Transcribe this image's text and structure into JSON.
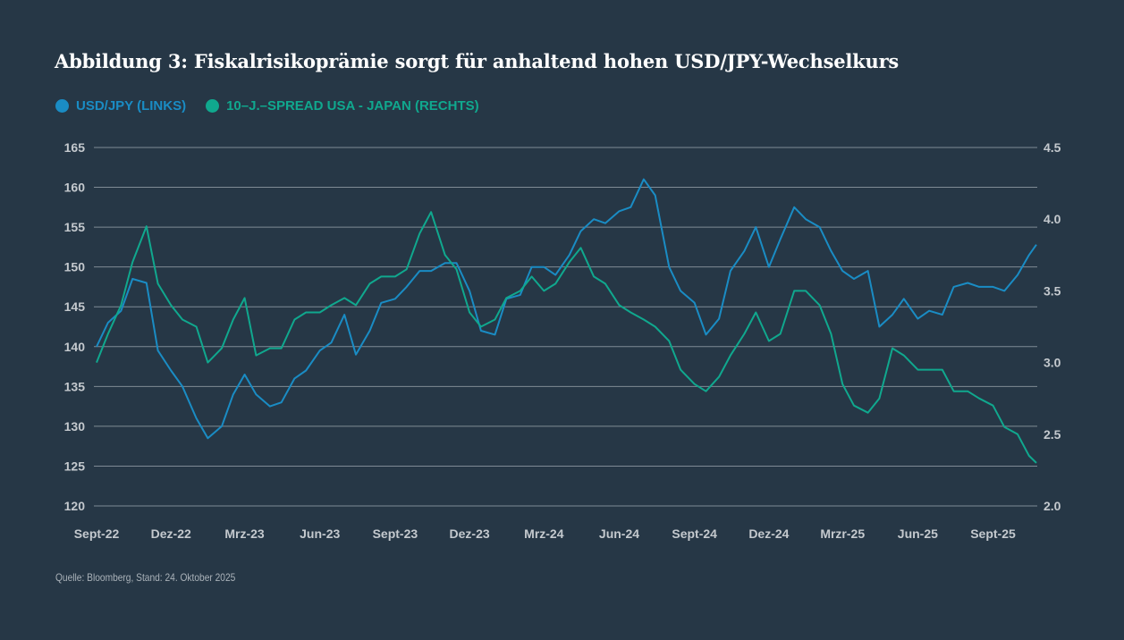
{
  "chart_data": {
    "type": "line",
    "title": "Abbildung 3: Fiskalrisikoprämie sorgt für anhaltend hohen USD/JPY-Wechselkurs",
    "source": "Quelle: Bloomberg, Stand: 24. Oktober 2025",
    "x_ticks": [
      "Sept-22",
      "Dez-22",
      "Mrz-23",
      "Jun-23",
      "Sept-23",
      "Dez-23",
      "Mrz-24",
      "Jun-24",
      "Sept-24",
      "Dez-24",
      "Mrzr-25",
      "Jun-25",
      "Sept-25"
    ],
    "x_tick_dates": [
      "2022-09-01",
      "2022-12-01",
      "2023-03-01",
      "2023-06-01",
      "2023-09-01",
      "2023-12-01",
      "2024-03-01",
      "2024-06-01",
      "2024-09-01",
      "2024-12-01",
      "2025-03-01",
      "2025-06-01",
      "2025-09-01"
    ],
    "xlim": [
      "2022-09-01",
      "2025-10-24"
    ],
    "y_left": {
      "ticks": [
        "120",
        "125",
        "130",
        "135",
        "140",
        "145",
        "150",
        "155",
        "160",
        "165"
      ],
      "lim": [
        120,
        165
      ]
    },
    "y_right": {
      "ticks": [
        "2.0",
        "2.5",
        "3.0",
        "3.5",
        "4.0",
        "4.5"
      ],
      "lim": [
        2.0,
        4.5
      ]
    },
    "grid": true,
    "legend_placement": "top-left",
    "x": [
      "2022-09-01",
      "2022-09-15",
      "2022-10-01",
      "2022-10-15",
      "2022-11-01",
      "2022-11-15",
      "2022-12-01",
      "2022-12-15",
      "2023-01-01",
      "2023-01-15",
      "2023-02-01",
      "2023-02-15",
      "2023-03-01",
      "2023-03-15",
      "2023-04-01",
      "2023-04-15",
      "2023-05-01",
      "2023-05-15",
      "2023-06-01",
      "2023-06-15",
      "2023-07-01",
      "2023-07-15",
      "2023-08-01",
      "2023-08-15",
      "2023-09-01",
      "2023-09-15",
      "2023-10-01",
      "2023-10-15",
      "2023-11-01",
      "2023-11-15",
      "2023-12-01",
      "2023-12-15",
      "2024-01-01",
      "2024-01-15",
      "2024-02-01",
      "2024-02-15",
      "2024-03-01",
      "2024-03-15",
      "2024-04-01",
      "2024-04-15",
      "2024-05-01",
      "2024-05-15",
      "2024-06-01",
      "2024-06-15",
      "2024-07-01",
      "2024-07-15",
      "2024-08-01",
      "2024-08-15",
      "2024-09-01",
      "2024-09-15",
      "2024-10-01",
      "2024-10-15",
      "2024-11-01",
      "2024-11-15",
      "2024-12-01",
      "2024-12-15",
      "2025-01-01",
      "2025-01-15",
      "2025-02-01",
      "2025-02-15",
      "2025-03-01",
      "2025-03-15",
      "2025-04-01",
      "2025-04-15",
      "2025-05-01",
      "2025-05-15",
      "2025-06-01",
      "2025-06-15",
      "2025-07-01",
      "2025-07-15",
      "2025-08-01",
      "2025-08-15",
      "2025-09-01",
      "2025-09-15",
      "2025-10-01",
      "2025-10-15",
      "2025-10-24"
    ],
    "series": [
      {
        "name": "USD/JPY (LINKS)",
        "axis": "left",
        "color": "#1a8cc4",
        "values": [
          140,
          143,
          144.5,
          148.5,
          148,
          139.5,
          137,
          135,
          131,
          128.5,
          130,
          134,
          136.5,
          134,
          132.5,
          133,
          136,
          137,
          139.5,
          140.5,
          144,
          139,
          142,
          145.5,
          146,
          147.5,
          149.5,
          149.5,
          150.5,
          150.5,
          147,
          142,
          141.5,
          146,
          146.5,
          150,
          150,
          149,
          151.5,
          154.5,
          156,
          155.5,
          157,
          157.5,
          161,
          159,
          150,
          147,
          145.5,
          141.5,
          143.5,
          149.5,
          152,
          155,
          150,
          153.5,
          157.5,
          156,
          155,
          152,
          149.5,
          148.5,
          149.5,
          142.5,
          144,
          146,
          143.5,
          144.5,
          144,
          147.5,
          148,
          147.5,
          147.5,
          147,
          149,
          151.5,
          152.8
        ]
      },
      {
        "name": "10–J.–SPREAD USA - JAPAN (RECHTS)",
        "axis": "right",
        "color": "#10a88e",
        "values": [
          3.0,
          3.2,
          3.4,
          3.7,
          3.95,
          3.55,
          3.4,
          3.3,
          3.25,
          3.0,
          3.1,
          3.3,
          3.45,
          3.05,
          3.1,
          3.1,
          3.3,
          3.35,
          3.35,
          3.4,
          3.45,
          3.4,
          3.55,
          3.6,
          3.6,
          3.65,
          3.9,
          4.05,
          3.75,
          3.65,
          3.35,
          3.25,
          3.3,
          3.45,
          3.5,
          3.6,
          3.5,
          3.55,
          3.7,
          3.8,
          3.6,
          3.55,
          3.4,
          3.35,
          3.3,
          3.25,
          3.15,
          2.95,
          2.85,
          2.8,
          2.9,
          3.05,
          3.2,
          3.35,
          3.15,
          3.2,
          3.5,
          3.5,
          3.4,
          3.2,
          2.85,
          2.7,
          2.65,
          2.75,
          3.1,
          3.05,
          2.95,
          2.95,
          2.95,
          2.8,
          2.8,
          2.75,
          2.7,
          2.55,
          2.5,
          2.35,
          2.3
        ]
      }
    ]
  }
}
